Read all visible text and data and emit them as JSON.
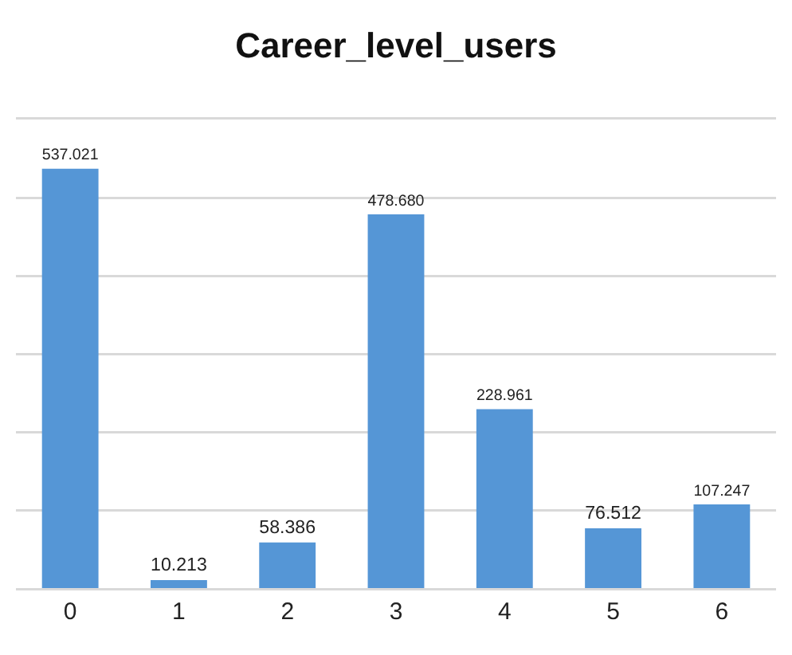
{
  "chart_data": {
    "type": "bar",
    "title": "Career_level_users",
    "categories": [
      "0",
      "1",
      "2",
      "3",
      "4",
      "5",
      "6"
    ],
    "values": [
      537.021,
      10.213,
      58.386,
      478.68,
      228.961,
      76.512,
      107.247
    ],
    "value_labels": [
      "537.021",
      "10.213",
      "58.386",
      "478.680",
      "228.961",
      "76.512",
      "107.247"
    ],
    "color": "#5596d6",
    "ylim": [
      0,
      600
    ],
    "yticks": [
      {
        "value": 0,
        "label": null
      },
      {
        "value": 100,
        "label": null
      },
      {
        "value": 200,
        "label": null
      },
      {
        "value": 300,
        "label": null
      },
      {
        "value": 400,
        "label": null
      },
      {
        "value": 500,
        "label": null
      },
      {
        "value": 600,
        "label": null
      }
    ],
    "grid": "y",
    "tick_labels": "x"
  }
}
